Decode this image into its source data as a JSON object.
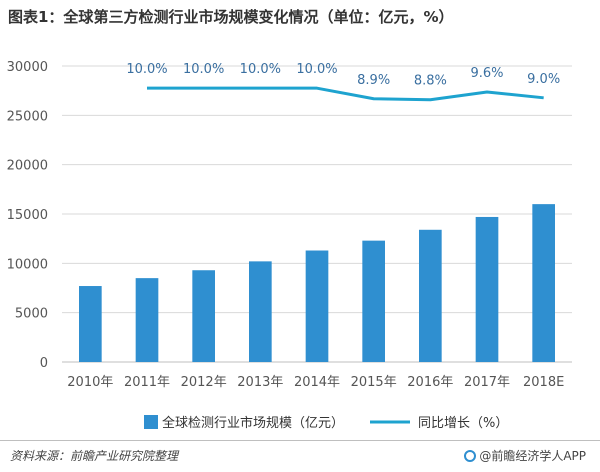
{
  "title": "图表1：全球第三方检测行业市场规模变化情况（单位：亿元，%）",
  "source": "资料来源：前瞻产业研究院整理",
  "brand": "@前瞻经济学人APP",
  "colors": {
    "bar": "#2f8fd0",
    "line": "#1ea3cf",
    "grid": "#d9d9d9",
    "axis_text": "#555555",
    "label_text": "#3a6fa0"
  },
  "chart_data": {
    "type": "bar",
    "categories": [
      "2010年",
      "2011年",
      "2012年",
      "2013年",
      "2014年",
      "2015年",
      "2016年",
      "2017年",
      "2018E"
    ],
    "ylim": [
      0,
      30000
    ],
    "yticks": [
      "0",
      "5000",
      "10000",
      "15000",
      "20000",
      "25000",
      "30000"
    ],
    "grid": true,
    "legend_position": "bottom",
    "series": [
      {
        "name": "全球检测行业市场规模（亿元）",
        "type": "bar",
        "values": [
          7700,
          8500,
          9300,
          10200,
          11300,
          12300,
          13400,
          14700,
          16000
        ]
      },
      {
        "name": "同比增长（%）",
        "type": "line",
        "values": [
          null,
          10.0,
          10.0,
          10.0,
          10.0,
          8.9,
          8.8,
          9.6,
          9.0
        ],
        "labels": [
          "",
          "10.0%",
          "10.0%",
          "10.0%",
          "10.0%",
          "8.9%",
          "8.8%",
          "9.6%",
          "9.0%"
        ],
        "secondary_scale": [
          -18.4,
          12.3
        ]
      }
    ]
  }
}
